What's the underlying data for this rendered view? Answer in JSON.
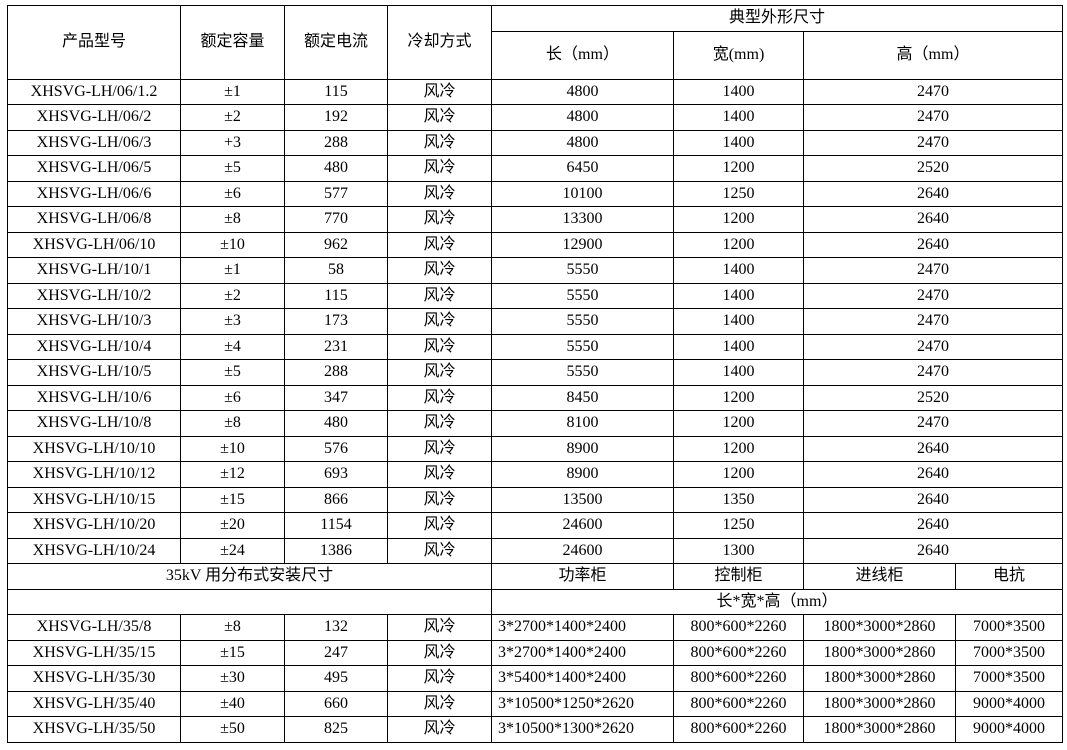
{
  "header": {
    "model": "产品型号",
    "capacity": "额定容量",
    "current": "额定电流",
    "cooling": "冷却方式",
    "dimensions": "典型外形尺寸",
    "length": "长（mm）",
    "width": "宽(mm)",
    "height": "高（mm）"
  },
  "rows": [
    [
      "XHSVG-LH/06/1.2",
      "±1",
      "115",
      "风冷",
      "4800",
      "1400",
      "2470"
    ],
    [
      "XHSVG-LH/06/2",
      "±2",
      "192",
      "风冷",
      "4800",
      "1400",
      "2470"
    ],
    [
      "XHSVG-LH/06/3",
      "+3",
      "288",
      "风冷",
      "4800",
      "1400",
      "2470"
    ],
    [
      "XHSVG-LH/06/5",
      "±5",
      "480",
      "风冷",
      "6450",
      "1200",
      "2520"
    ],
    [
      "XHSVG-LH/06/6",
      "±6",
      "577",
      "风冷",
      "10100",
      "1250",
      "2640"
    ],
    [
      "XHSVG-LH/06/8",
      "±8",
      "770",
      "风冷",
      "13300",
      "1200",
      "2640"
    ],
    [
      "XHSVG-LH/06/10",
      "±10",
      "962",
      "风冷",
      "12900",
      "1200",
      "2640"
    ],
    [
      "XHSVG-LH/10/1",
      "±1",
      "58",
      "风冷",
      "5550",
      "1400",
      "2470"
    ],
    [
      "XHSVG-LH/10/2",
      "±2",
      "115",
      "风冷",
      "5550",
      "1400",
      "2470"
    ],
    [
      "XHSVG-LH/10/3",
      "±3",
      "173",
      "风冷",
      "5550",
      "1400",
      "2470"
    ],
    [
      "XHSVG-LH/10/4",
      "±4",
      "231",
      "风冷",
      "5550",
      "1400",
      "2470"
    ],
    [
      "XHSVG-LH/10/5",
      "±5",
      "288",
      "风冷",
      "5550",
      "1400",
      "2470"
    ],
    [
      "XHSVG-LH/10/6",
      "±6",
      "347",
      "风冷",
      "8450",
      "1200",
      "2520"
    ],
    [
      "XHSVG-LH/10/8",
      "±8",
      "480",
      "风冷",
      "8100",
      "1200",
      "2470"
    ],
    [
      "XHSVG-LH/10/10",
      "±10",
      "576",
      "风冷",
      "8900",
      "1200",
      "2640"
    ],
    [
      "XHSVG-LH/10/12",
      "±12",
      "693",
      "风冷",
      "8900",
      "1200",
      "2640"
    ],
    [
      "XHSVG-LH/10/15",
      "±15",
      "866",
      "风冷",
      "13500",
      "1350",
      "2640"
    ],
    [
      "XHSVG-LH/10/20",
      "±20",
      "1154",
      "风冷",
      "24600",
      "1250",
      "2640"
    ],
    [
      "XHSVG-LH/10/24",
      "±24",
      "1386",
      "风冷",
      "24600",
      "1300",
      "2640"
    ]
  ],
  "section35": {
    "title": "35kV 用分布式安装尺寸",
    "power_cabinet": "功率柜",
    "control_cabinet": "控制柜",
    "incoming_cabinet": "进线柜",
    "reactor": "电抗",
    "dims_label": "长*宽*高（mm）",
    "rows": [
      [
        "XHSVG-LH/35/8",
        "±8",
        "132",
        "风冷",
        "3*2700*1400*2400",
        "800*600*2260",
        "1800*3000*2860",
        "7000*3500"
      ],
      [
        "XHSVG-LH/35/15",
        "±15",
        "247",
        "风冷",
        "3*2700*1400*2400",
        "800*600*2260",
        "1800*3000*2860",
        "7000*3500"
      ],
      [
        "XHSVG-LH/35/30",
        "±30",
        "495",
        "风冷",
        "3*5400*1400*2400",
        "800*600*2260",
        "1800*3000*2860",
        "7000*3500"
      ],
      [
        "XHSVG-LH/35/40",
        "±40",
        "660",
        "风冷",
        "3*10500*1250*2620",
        "800*600*2260",
        "1800*3000*2860",
        "9000*4000"
      ],
      [
        "XHSVG-LH/35/50",
        "±50",
        "825",
        "风冷",
        "3*10500*1300*2620",
        "800*600*2260",
        "1800*3000*2860",
        "9000*4000"
      ]
    ]
  }
}
